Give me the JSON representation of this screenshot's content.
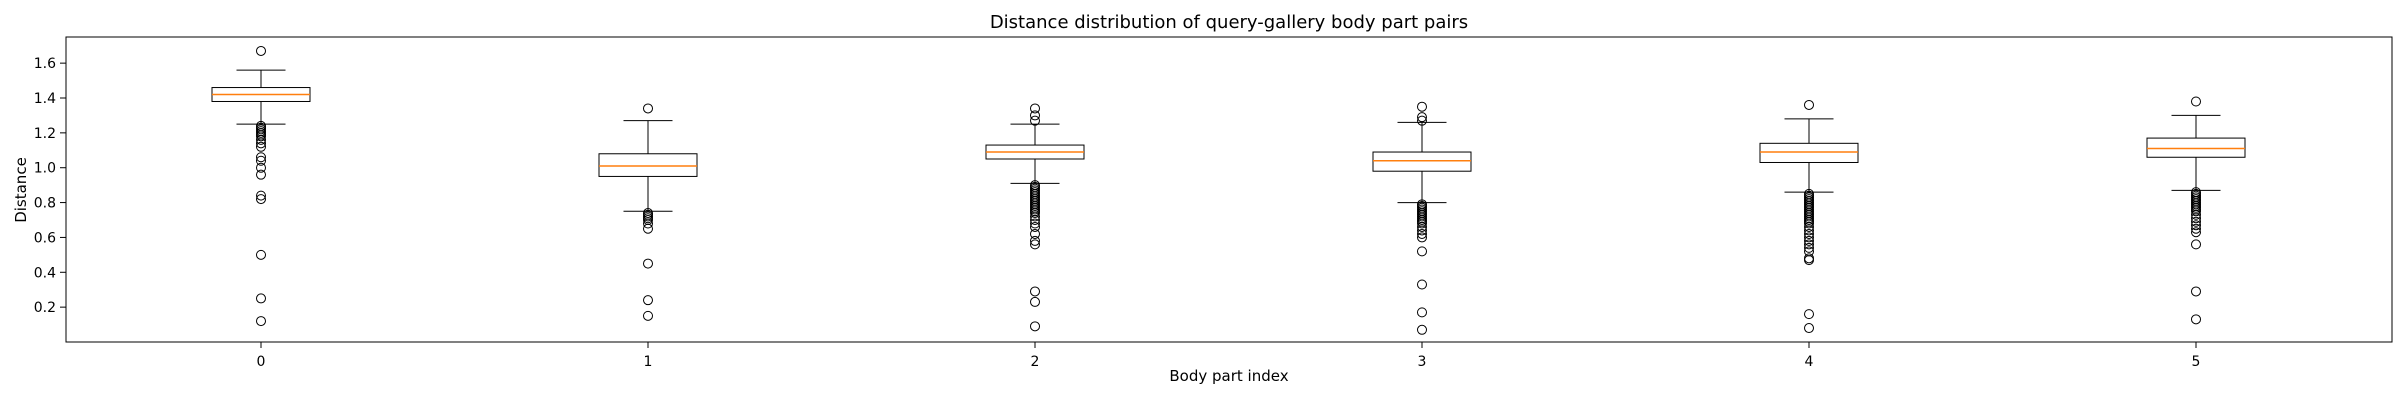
{
  "chart_data": {
    "type": "boxplot",
    "title": "Distance distribution of query-gallery body part pairs",
    "xlabel": "Body part index",
    "ylabel": "Distance",
    "categories": [
      "0",
      "1",
      "2",
      "3",
      "4",
      "5"
    ],
    "ylim": [
      0.0,
      1.75
    ],
    "yticks": [
      "0.2",
      "0.4",
      "0.6",
      "0.8",
      "1.0",
      "1.2",
      "1.4",
      "1.6"
    ],
    "grid": false,
    "legend": "none",
    "colors": {
      "box": "#000000",
      "median": "#ff7f0e",
      "axes": "#000000"
    },
    "boxes": [
      {
        "category": "0",
        "whisker_low": 1.25,
        "q1": 1.38,
        "median": 1.42,
        "q3": 1.46,
        "whisker_high": 1.56,
        "outliers_low": [
          1.24,
          1.23,
          1.22,
          1.21,
          1.2,
          1.19,
          1.18,
          1.16,
          1.14,
          1.12,
          1.06,
          1.04,
          1.0,
          0.96,
          0.84,
          0.82,
          0.5,
          0.25,
          0.12
        ],
        "outliers_high": [
          1.67
        ]
      },
      {
        "category": "1",
        "whisker_low": 0.75,
        "q1": 0.95,
        "median": 1.01,
        "q3": 1.08,
        "whisker_high": 1.27,
        "outliers_low": [
          0.74,
          0.73,
          0.72,
          0.71,
          0.7,
          0.68,
          0.65,
          0.45,
          0.24,
          0.15
        ],
        "outliers_high": [
          1.34
        ]
      },
      {
        "category": "2",
        "whisker_low": 0.91,
        "q1": 1.05,
        "median": 1.09,
        "q3": 1.13,
        "whisker_high": 1.25,
        "outliers_low": [
          0.9,
          0.89,
          0.88,
          0.87,
          0.86,
          0.85,
          0.84,
          0.83,
          0.82,
          0.81,
          0.8,
          0.79,
          0.78,
          0.77,
          0.76,
          0.75,
          0.74,
          0.72,
          0.7,
          0.68,
          0.66,
          0.62,
          0.58,
          0.56,
          0.29,
          0.23,
          0.09
        ],
        "outliers_high": [
          1.27,
          1.3,
          1.34
        ]
      },
      {
        "category": "3",
        "whisker_low": 0.8,
        "q1": 0.98,
        "median": 1.04,
        "q3": 1.09,
        "whisker_high": 1.26,
        "outliers_low": [
          0.79,
          0.78,
          0.77,
          0.76,
          0.75,
          0.74,
          0.73,
          0.72,
          0.71,
          0.7,
          0.69,
          0.68,
          0.66,
          0.64,
          0.62,
          0.6,
          0.52,
          0.33,
          0.17,
          0.07
        ],
        "outliers_high": [
          1.27,
          1.29,
          1.35
        ]
      },
      {
        "category": "4",
        "whisker_low": 0.86,
        "q1": 1.03,
        "median": 1.09,
        "q3": 1.14,
        "whisker_high": 1.28,
        "outliers_low": [
          0.85,
          0.84,
          0.83,
          0.82,
          0.81,
          0.8,
          0.79,
          0.78,
          0.77,
          0.76,
          0.75,
          0.74,
          0.73,
          0.72,
          0.71,
          0.7,
          0.69,
          0.68,
          0.66,
          0.64,
          0.62,
          0.6,
          0.58,
          0.56,
          0.54,
          0.52,
          0.48,
          0.47,
          0.16,
          0.08
        ],
        "outliers_high": [
          1.36
        ]
      },
      {
        "category": "5",
        "whisker_low": 0.87,
        "q1": 1.06,
        "median": 1.11,
        "q3": 1.17,
        "whisker_high": 1.3,
        "outliers_low": [
          0.86,
          0.85,
          0.84,
          0.83,
          0.82,
          0.81,
          0.8,
          0.79,
          0.78,
          0.77,
          0.76,
          0.75,
          0.73,
          0.71,
          0.69,
          0.67,
          0.65,
          0.63,
          0.56,
          0.29,
          0.13
        ],
        "outliers_high": [
          1.38
        ]
      }
    ]
  }
}
